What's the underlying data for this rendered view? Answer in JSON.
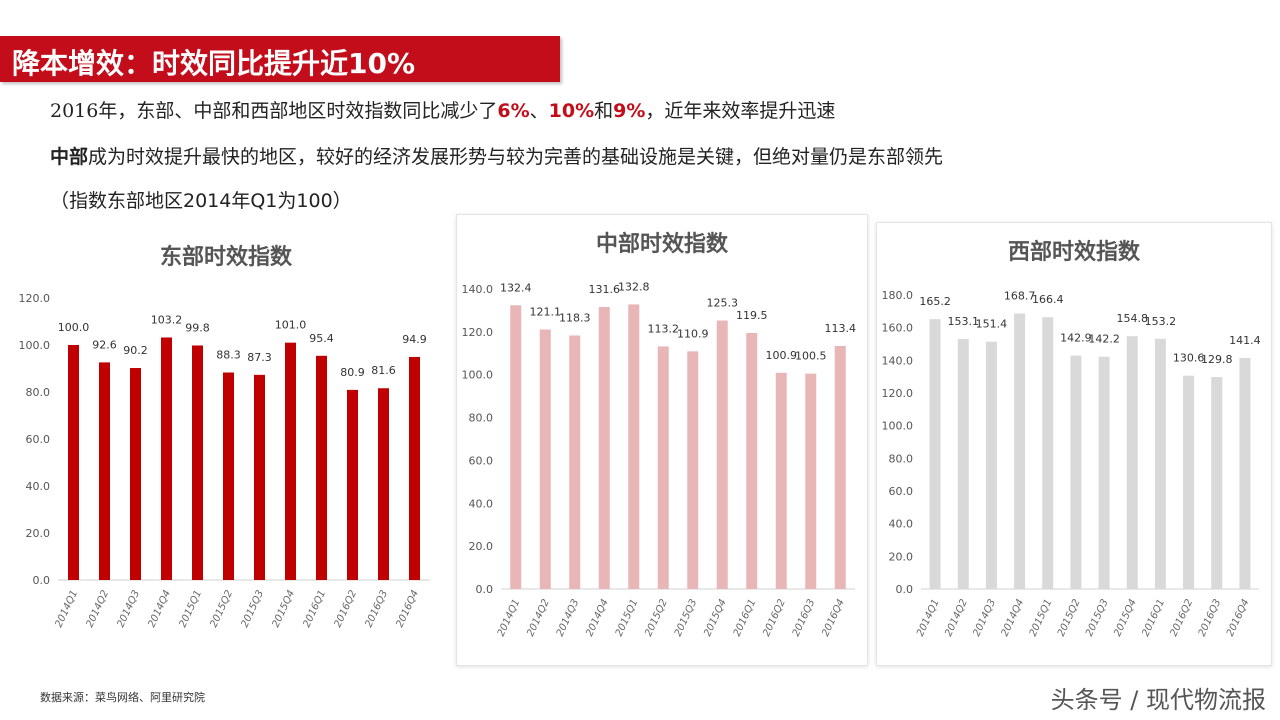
{
  "header": {
    "title": "降本增效：时效同比提升近10%"
  },
  "body_text": {
    "line1_a": "2016年，东部、中部和西部地区时效指数同比减少了",
    "line1_h1": "6%",
    "line1_sep1": "、",
    "line1_h2": "10%",
    "line1_sep2": "和",
    "line1_h3": "9%",
    "line1_b": "，近年来效率提升迅速",
    "line2_bold": "中部",
    "line2_rest": "成为时效提升最快的地区，较好的经济发展形势与较为完善的基础设施是关键，但绝对量仍是东部领先",
    "line3": "（指数东部地区2014年Q1为100）"
  },
  "footer": {
    "source": "数据来源：菜鸟网络、阿里研究院",
    "watermark": "头条号 / 现代物流报"
  },
  "colors": {
    "brand_red": "#c30d1a",
    "east_bar": "#c00000",
    "central_bar": "#e8b6b6",
    "west_bar": "#d9d9d9"
  },
  "chart_data": [
    {
      "type": "bar",
      "title": "东部时效指数",
      "categories": [
        "2014Q1",
        "2014Q2",
        "2014Q3",
        "2014Q4",
        "2015Q1",
        "2015Q2",
        "2015Q3",
        "2015Q4",
        "2016Q1",
        "2016Q2",
        "2016Q3",
        "2016Q4"
      ],
      "values": [
        100.0,
        92.6,
        90.2,
        103.2,
        99.8,
        88.3,
        87.3,
        101.0,
        95.4,
        80.9,
        81.6,
        94.9
      ],
      "ylim": [
        0,
        120
      ],
      "yticks": [
        "0.0",
        "20.0",
        "40.0",
        "60.0",
        "80.0",
        "100.0",
        "120.0"
      ],
      "grid": false,
      "color": "#c00000"
    },
    {
      "type": "bar",
      "title": "中部时效指数",
      "categories": [
        "2014Q1",
        "2014Q2",
        "2014Q3",
        "2014Q4",
        "2015Q1",
        "2015Q2",
        "2015Q3",
        "2015Q4",
        "2016Q1",
        "2016Q2",
        "2016Q3",
        "2016Q4"
      ],
      "values": [
        132.4,
        121.1,
        118.3,
        131.6,
        132.8,
        113.2,
        110.9,
        125.3,
        119.5,
        100.9,
        100.5,
        113.4
      ],
      "ylim": [
        0,
        140
      ],
      "yticks": [
        "0.0",
        "20.0",
        "40.0",
        "60.0",
        "80.0",
        "100.0",
        "120.0",
        "140.0"
      ],
      "grid": false,
      "color": "#e8b6b6"
    },
    {
      "type": "bar",
      "title": "西部时效指数",
      "categories": [
        "2014Q1",
        "2014Q2",
        "2014Q3",
        "2014Q4",
        "2015Q1",
        "2015Q2",
        "2015Q3",
        "2015Q4",
        "2016Q1",
        "2016Q2",
        "2016Q3",
        "2016Q4"
      ],
      "values": [
        165.2,
        153.1,
        151.4,
        168.7,
        166.4,
        142.9,
        142.2,
        154.8,
        153.2,
        130.6,
        129.8,
        141.4
      ],
      "ylim": [
        0,
        180
      ],
      "yticks": [
        "0.0",
        "20.0",
        "40.0",
        "60.0",
        "80.0",
        "100.0",
        "120.0",
        "140.0",
        "160.0",
        "180.0"
      ],
      "grid": false,
      "color": "#d9d9d9"
    }
  ]
}
